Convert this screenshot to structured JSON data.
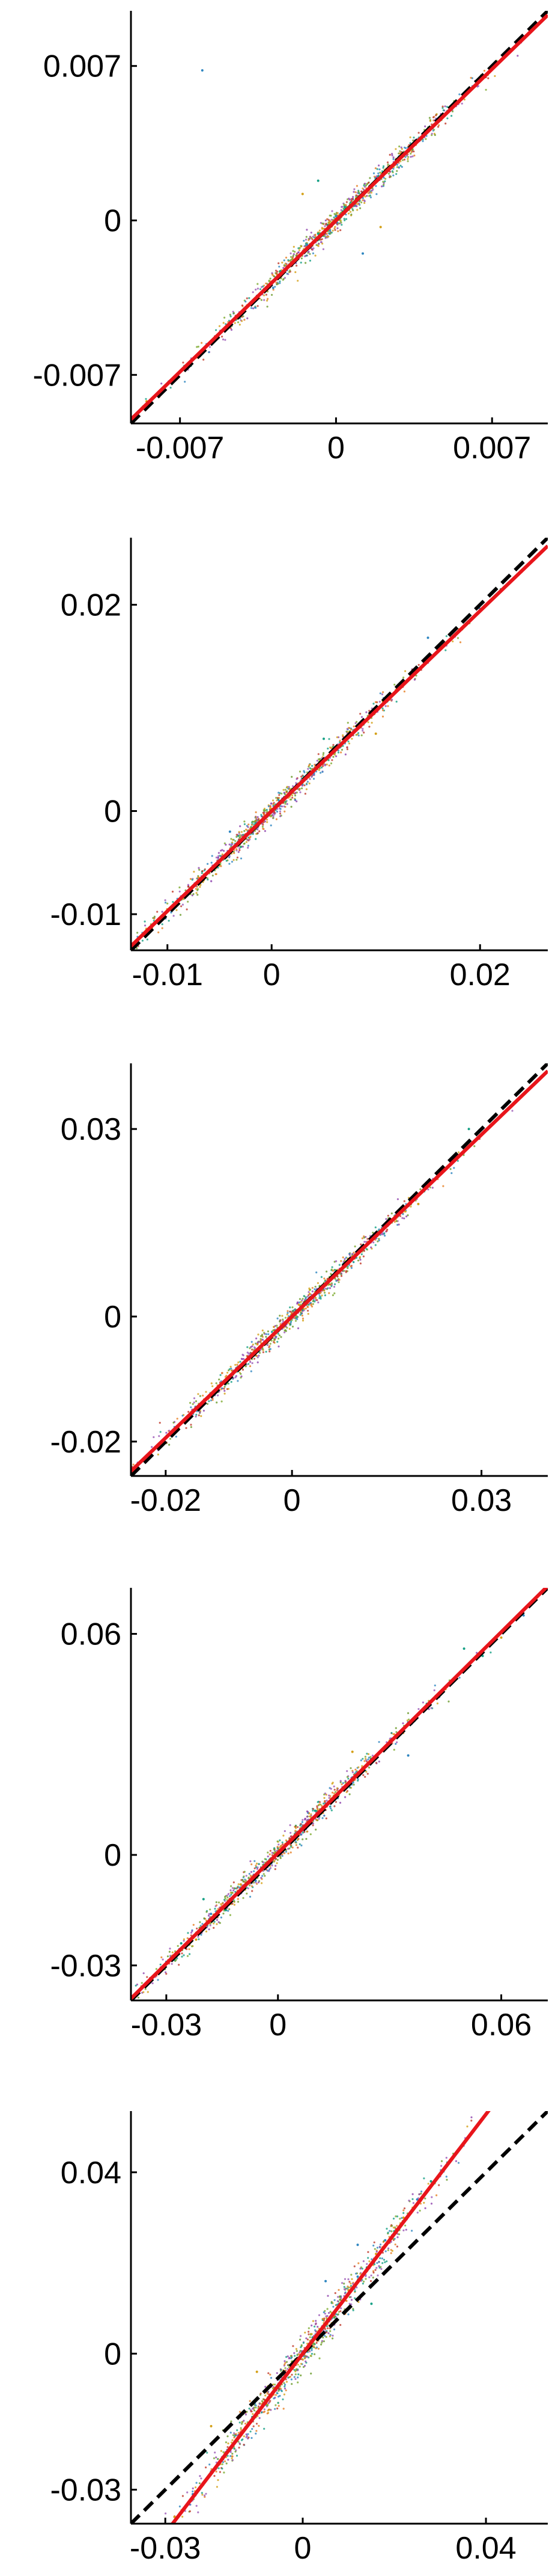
{
  "chart_data": [
    {
      "type": "scatter",
      "title": "",
      "xlabel": "",
      "ylabel": "",
      "xlim": [
        -0.0092,
        0.0095
      ],
      "ylim": [
        -0.0092,
        0.0095
      ],
      "xticks": [
        -0.007,
        0,
        0.007
      ],
      "yticks": [
        -0.007,
        0,
        0.007
      ],
      "xtick_labels": [
        "-0.007",
        "0",
        "0.007"
      ],
      "ytick_labels": [
        "-0.007",
        "0",
        "0.007"
      ],
      "grid": false,
      "series": [
        {
          "kind": "points",
          "values": [
            [
              -0.0085,
              -0.0082
            ],
            [
              -0.0075,
              -0.0073
            ],
            [
              -0.0068,
              -0.0066
            ],
            [
              -0.006,
              -0.0059
            ],
            [
              -0.0052,
              -0.0051
            ],
            [
              -0.0045,
              -0.0045
            ],
            [
              -0.0038,
              -0.0037
            ],
            [
              -0.0031,
              -0.0031
            ],
            [
              -0.0025,
              -0.0023
            ],
            [
              -0.0019,
              -0.0018
            ],
            [
              -0.0013,
              -0.0011
            ],
            [
              -0.0008,
              -0.0006
            ],
            [
              -0.0003,
              -0.0001
            ],
            [
              0,
              0.0002
            ],
            [
              0.0004,
              0.0006
            ],
            [
              0.0009,
              0.001
            ],
            [
              0.0014,
              0.0014
            ],
            [
              0.0019,
              0.002
            ],
            [
              0.0025,
              0.0025
            ],
            [
              0.0031,
              0.0031
            ],
            [
              0.0038,
              0.0037
            ],
            [
              0.0045,
              0.0044
            ],
            [
              0.0052,
              0.0051
            ],
            [
              0.006,
              0.0059
            ],
            [
              0.0068,
              0.0066
            ],
            [
              0.0077,
              0.0076
            ],
            [
              0.0088,
              0.0086
            ],
            [
              -0.0015,
              0.0012
            ],
            [
              0.0012,
              -0.0015
            ],
            [
              -0.0008,
              0.0018
            ],
            [
              0.002,
              -0.0003
            ],
            [
              -0.006,
              0.0068
            ]
          ]
        },
        {
          "kind": "fit",
          "color": "#e8151b",
          "slope": 0.98,
          "intercept": 0
        },
        {
          "kind": "identity",
          "color": "#000000",
          "slope": 1,
          "intercept": 0
        }
      ]
    },
    {
      "type": "scatter",
      "title": "",
      "xlabel": "",
      "ylabel": "",
      "xlim": [
        -0.0135,
        0.0265
      ],
      "ylim": [
        -0.0135,
        0.0265
      ],
      "xticks": [
        -0.01,
        0,
        0.02
      ],
      "yticks": [
        -0.01,
        0,
        0.02
      ],
      "xtick_labels": [
        "-0.01",
        "0",
        "0.02"
      ],
      "ytick_labels": [
        "-0.01",
        "0",
        "0.02"
      ],
      "grid": false,
      "series": [
        {
          "kind": "points",
          "values": [
            [
              -0.0115,
              -0.0113
            ],
            [
              -0.009,
              -0.0088
            ],
            [
              -0.007,
              -0.0069
            ],
            [
              -0.005,
              -0.0048
            ],
            [
              -0.003,
              -0.0029
            ],
            [
              -0.0015,
              -0.0012
            ],
            [
              0,
              0.0002
            ],
            [
              0.002,
              0.0021
            ],
            [
              0.004,
              0.0039
            ],
            [
              0.006,
              0.0058
            ],
            [
              0.008,
              0.0078
            ],
            [
              0.01,
              0.0097
            ],
            [
              0.012,
              0.0118
            ],
            [
              0.014,
              0.0136
            ],
            [
              0.016,
              0.0155
            ],
            [
              0.018,
              0.0176
            ],
            [
              0.02,
              0.0196
            ],
            [
              0.022,
              0.0215
            ],
            [
              0.024,
              0.0232
            ],
            [
              -0.004,
              -0.002
            ],
            [
              0.005,
              0.007
            ],
            [
              0.01,
              0.0075
            ],
            [
              0.015,
              0.0168
            ]
          ]
        },
        {
          "kind": "fit",
          "color": "#e8151b",
          "slope": 0.97,
          "intercept": 0
        },
        {
          "kind": "identity",
          "color": "#000000",
          "slope": 1,
          "intercept": 0
        }
      ]
    },
    {
      "type": "scatter",
      "title": "",
      "xlabel": "",
      "ylabel": "",
      "xlim": [
        -0.0255,
        0.0405
      ],
      "ylim": [
        -0.0255,
        0.0405
      ],
      "xticks": [
        -0.02,
        0,
        0.03
      ],
      "yticks": [
        -0.02,
        0,
        0.03
      ],
      "xtick_labels": [
        "-0.02",
        "0",
        "0.03"
      ],
      "ytick_labels": [
        "-0.02",
        "0",
        "0.03"
      ],
      "grid": false,
      "series": [
        {
          "kind": "points",
          "values": [
            [
              -0.022,
              -0.0215
            ],
            [
              -0.018,
              -0.0176
            ],
            [
              -0.014,
              -0.0137
            ],
            [
              -0.01,
              -0.0098
            ],
            [
              -0.007,
              -0.0068
            ],
            [
              -0.004,
              -0.0039
            ],
            [
              -0.002,
              -0.0019
            ],
            [
              0,
              0.0001
            ],
            [
              0.003,
              0.0029
            ],
            [
              0.006,
              0.0058
            ],
            [
              0.009,
              0.0087
            ],
            [
              0.012,
              0.0116
            ],
            [
              0.015,
              0.0146
            ],
            [
              0.018,
              0.0175
            ],
            [
              0.021,
              0.0204
            ],
            [
              0.024,
              0.0233
            ],
            [
              0.027,
              0.0262
            ],
            [
              0.03,
              0.0291
            ],
            [
              0.034,
              0.033
            ],
            [
              0.037,
              0.0358
            ],
            [
              0.028,
              0.03
            ],
            [
              0.02,
              0.018
            ]
          ]
        },
        {
          "kind": "fit",
          "color": "#e8151b",
          "slope": 0.97,
          "intercept": 0
        },
        {
          "kind": "identity",
          "color": "#000000",
          "slope": 1,
          "intercept": 0
        }
      ]
    },
    {
      "type": "scatter",
      "title": "",
      "xlabel": "",
      "ylabel": "",
      "xlim": [
        -0.0395,
        0.0725
      ],
      "ylim": [
        -0.0395,
        0.0725
      ],
      "xticks": [
        -0.03,
        0,
        0.06
      ],
      "yticks": [
        -0.03,
        0,
        0.06
      ],
      "xtick_labels": [
        "-0.03",
        "0",
        "0.06"
      ],
      "ytick_labels": [
        "-0.03",
        "0",
        "0.06"
      ],
      "grid": false,
      "series": [
        {
          "kind": "points",
          "values": [
            [
              -0.035,
              -0.0345
            ],
            [
              -0.03,
              -0.029
            ],
            [
              -0.026,
              -0.024
            ],
            [
              -0.022,
              -0.023
            ],
            [
              -0.018,
              -0.016
            ],
            [
              -0.014,
              -0.015
            ],
            [
              -0.01,
              -0.008
            ],
            [
              -0.006,
              -0.007
            ],
            [
              -0.002,
              -0.001
            ],
            [
              0.002,
              0.003
            ],
            [
              0.006,
              0.007
            ],
            [
              0.01,
              0.012
            ],
            [
              0.015,
              0.016
            ],
            [
              0.02,
              0.021
            ],
            [
              0.025,
              0.026
            ],
            [
              0.03,
              0.031
            ],
            [
              0.035,
              0.036
            ],
            [
              0.04,
              0.041
            ],
            [
              0.045,
              0.045
            ],
            [
              0.05,
              0.05
            ],
            [
              0.055,
              0.054
            ],
            [
              0.06,
              0.059
            ],
            [
              0.066,
              0.065
            ],
            [
              -0.02,
              -0.012
            ],
            [
              0.02,
              0.028
            ],
            [
              0.035,
              0.027
            ],
            [
              0.05,
              0.056
            ]
          ]
        },
        {
          "kind": "fit",
          "color": "#e8151b",
          "slope": 1.0,
          "intercept": 0.0005
        },
        {
          "kind": "identity",
          "color": "#000000",
          "slope": 1,
          "intercept": 0
        }
      ]
    },
    {
      "type": "scatter",
      "title": "",
      "xlabel": "",
      "ylabel": "",
      "xlim": [
        -0.0375,
        0.0535
      ],
      "ylim": [
        -0.0375,
        0.0535
      ],
      "xticks": [
        -0.03,
        0,
        0.04
      ],
      "yticks": [
        -0.03,
        0,
        0.04
      ],
      "xtick_labels": [
        "-0.03",
        "0",
        "0.04"
      ],
      "ytick_labels": [
        "-0.03",
        "0",
        "0.04"
      ],
      "grid": false,
      "series": [
        {
          "kind": "points",
          "values": [
            [
              -0.028,
              -0.036
            ],
            [
              -0.024,
              -0.031
            ],
            [
              -0.02,
              -0.026
            ],
            [
              -0.017,
              -0.022
            ],
            [
              -0.014,
              -0.018
            ],
            [
              -0.011,
              -0.014
            ],
            [
              -0.008,
              -0.011
            ],
            [
              -0.006,
              -0.008
            ],
            [
              -0.004,
              -0.005
            ],
            [
              -0.002,
              -0.003
            ],
            [
              0,
              0
            ],
            [
              0.002,
              0.003
            ],
            [
              0.004,
              0.005
            ],
            [
              0.006,
              0.008
            ],
            [
              0.008,
              0.011
            ],
            [
              0.01,
              0.014
            ],
            [
              0.012,
              0.017
            ],
            [
              0.014,
              0.019
            ],
            [
              0.016,
              0.022
            ],
            [
              0.018,
              0.025
            ],
            [
              0.02,
              0.027
            ],
            [
              0.022,
              0.03
            ],
            [
              0.025,
              0.034
            ],
            [
              0.028,
              0.038
            ],
            [
              -0.01,
              -0.004
            ],
            [
              0.005,
              0.016
            ],
            [
              0.015,
              0.011
            ],
            [
              -0.02,
              -0.016
            ],
            [
              0.012,
              0.024
            ]
          ]
        },
        {
          "kind": "fit",
          "color": "#e8151b",
          "slope": 1.32,
          "intercept": 0
        },
        {
          "kind": "identity",
          "color": "#000000",
          "slope": 1,
          "intercept": 0
        }
      ]
    }
  ]
}
